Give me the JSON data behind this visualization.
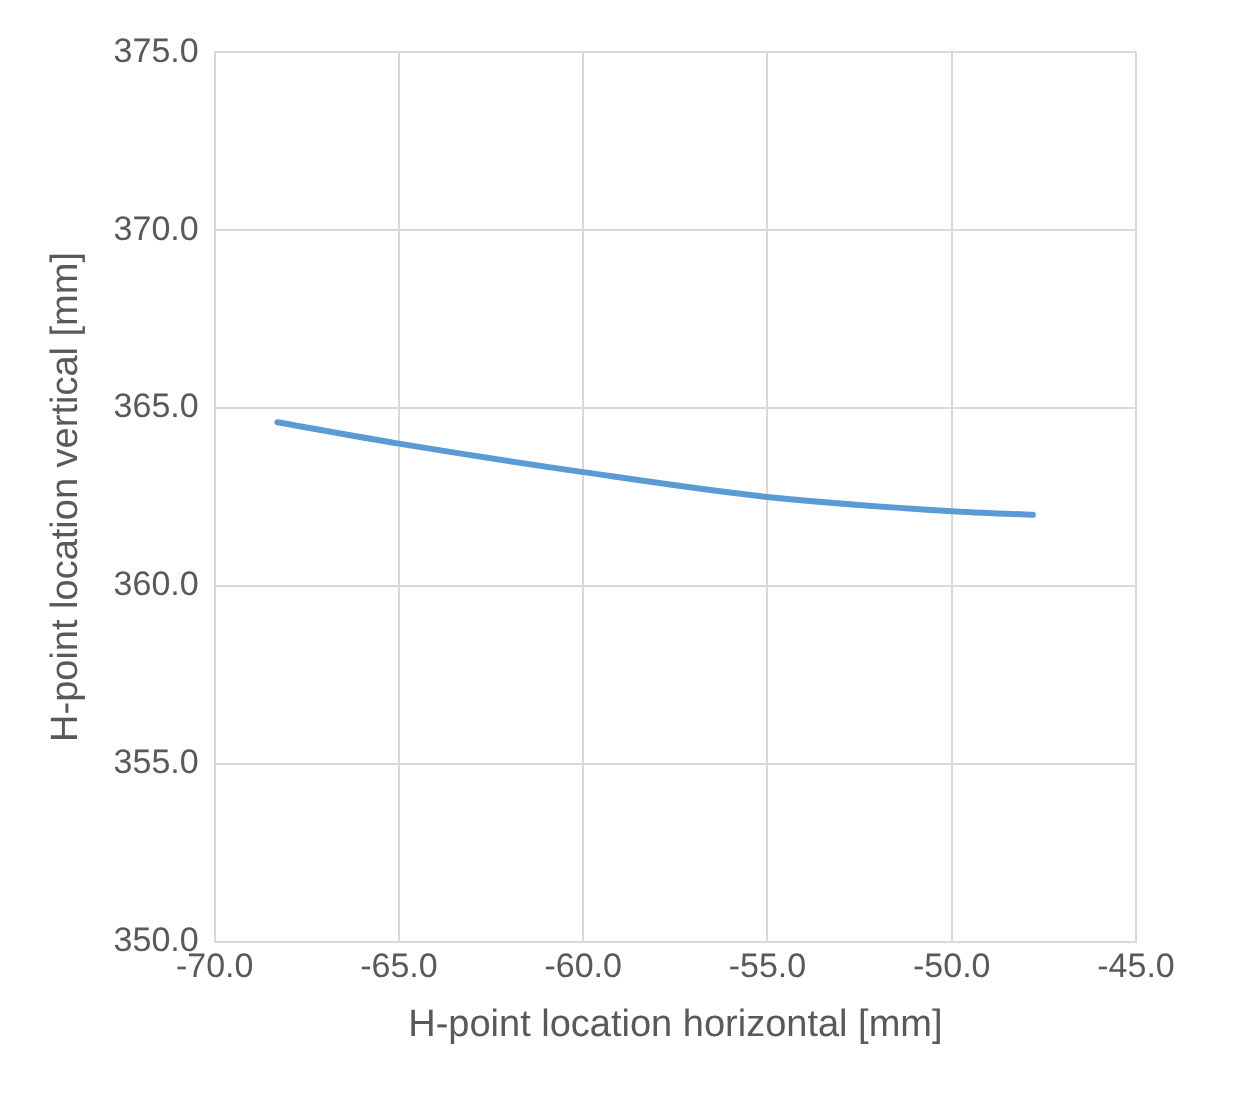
{
  "chart_data": {
    "type": "line",
    "xlabel": "H-point location horizontal [mm]",
    "ylabel": "H-point location vertical [mm]",
    "x": [
      -68.3,
      -65,
      -60,
      -55,
      -50,
      -47.8
    ],
    "series": [
      {
        "color": "#5b9bd5",
        "values": [
          364.6,
          364.0,
          363.2,
          362.5,
          362.1,
          362.0
        ]
      }
    ],
    "xlim": [
      -70,
      -45
    ],
    "xticks": [
      {
        "value": -70,
        "label": "-70.0"
      },
      {
        "value": -65,
        "label": "-65.0"
      },
      {
        "value": -60,
        "label": "-60.0"
      },
      {
        "value": -55,
        "label": "-55.0"
      },
      {
        "value": -50,
        "label": "-50.0"
      },
      {
        "value": -45,
        "label": "-45.0"
      }
    ],
    "ylim": [
      350,
      375
    ],
    "yticks": [
      {
        "value": 350,
        "label": "350.0"
      },
      {
        "value": 355,
        "label": "355.0"
      },
      {
        "value": 360,
        "label": "360.0"
      },
      {
        "value": 365,
        "label": "365.0"
      },
      {
        "value": 370,
        "label": "370.0"
      },
      {
        "value": 375,
        "label": "375.0"
      }
    ],
    "grid": true,
    "legend": false,
    "marker": "none",
    "line_style": "solid"
  }
}
